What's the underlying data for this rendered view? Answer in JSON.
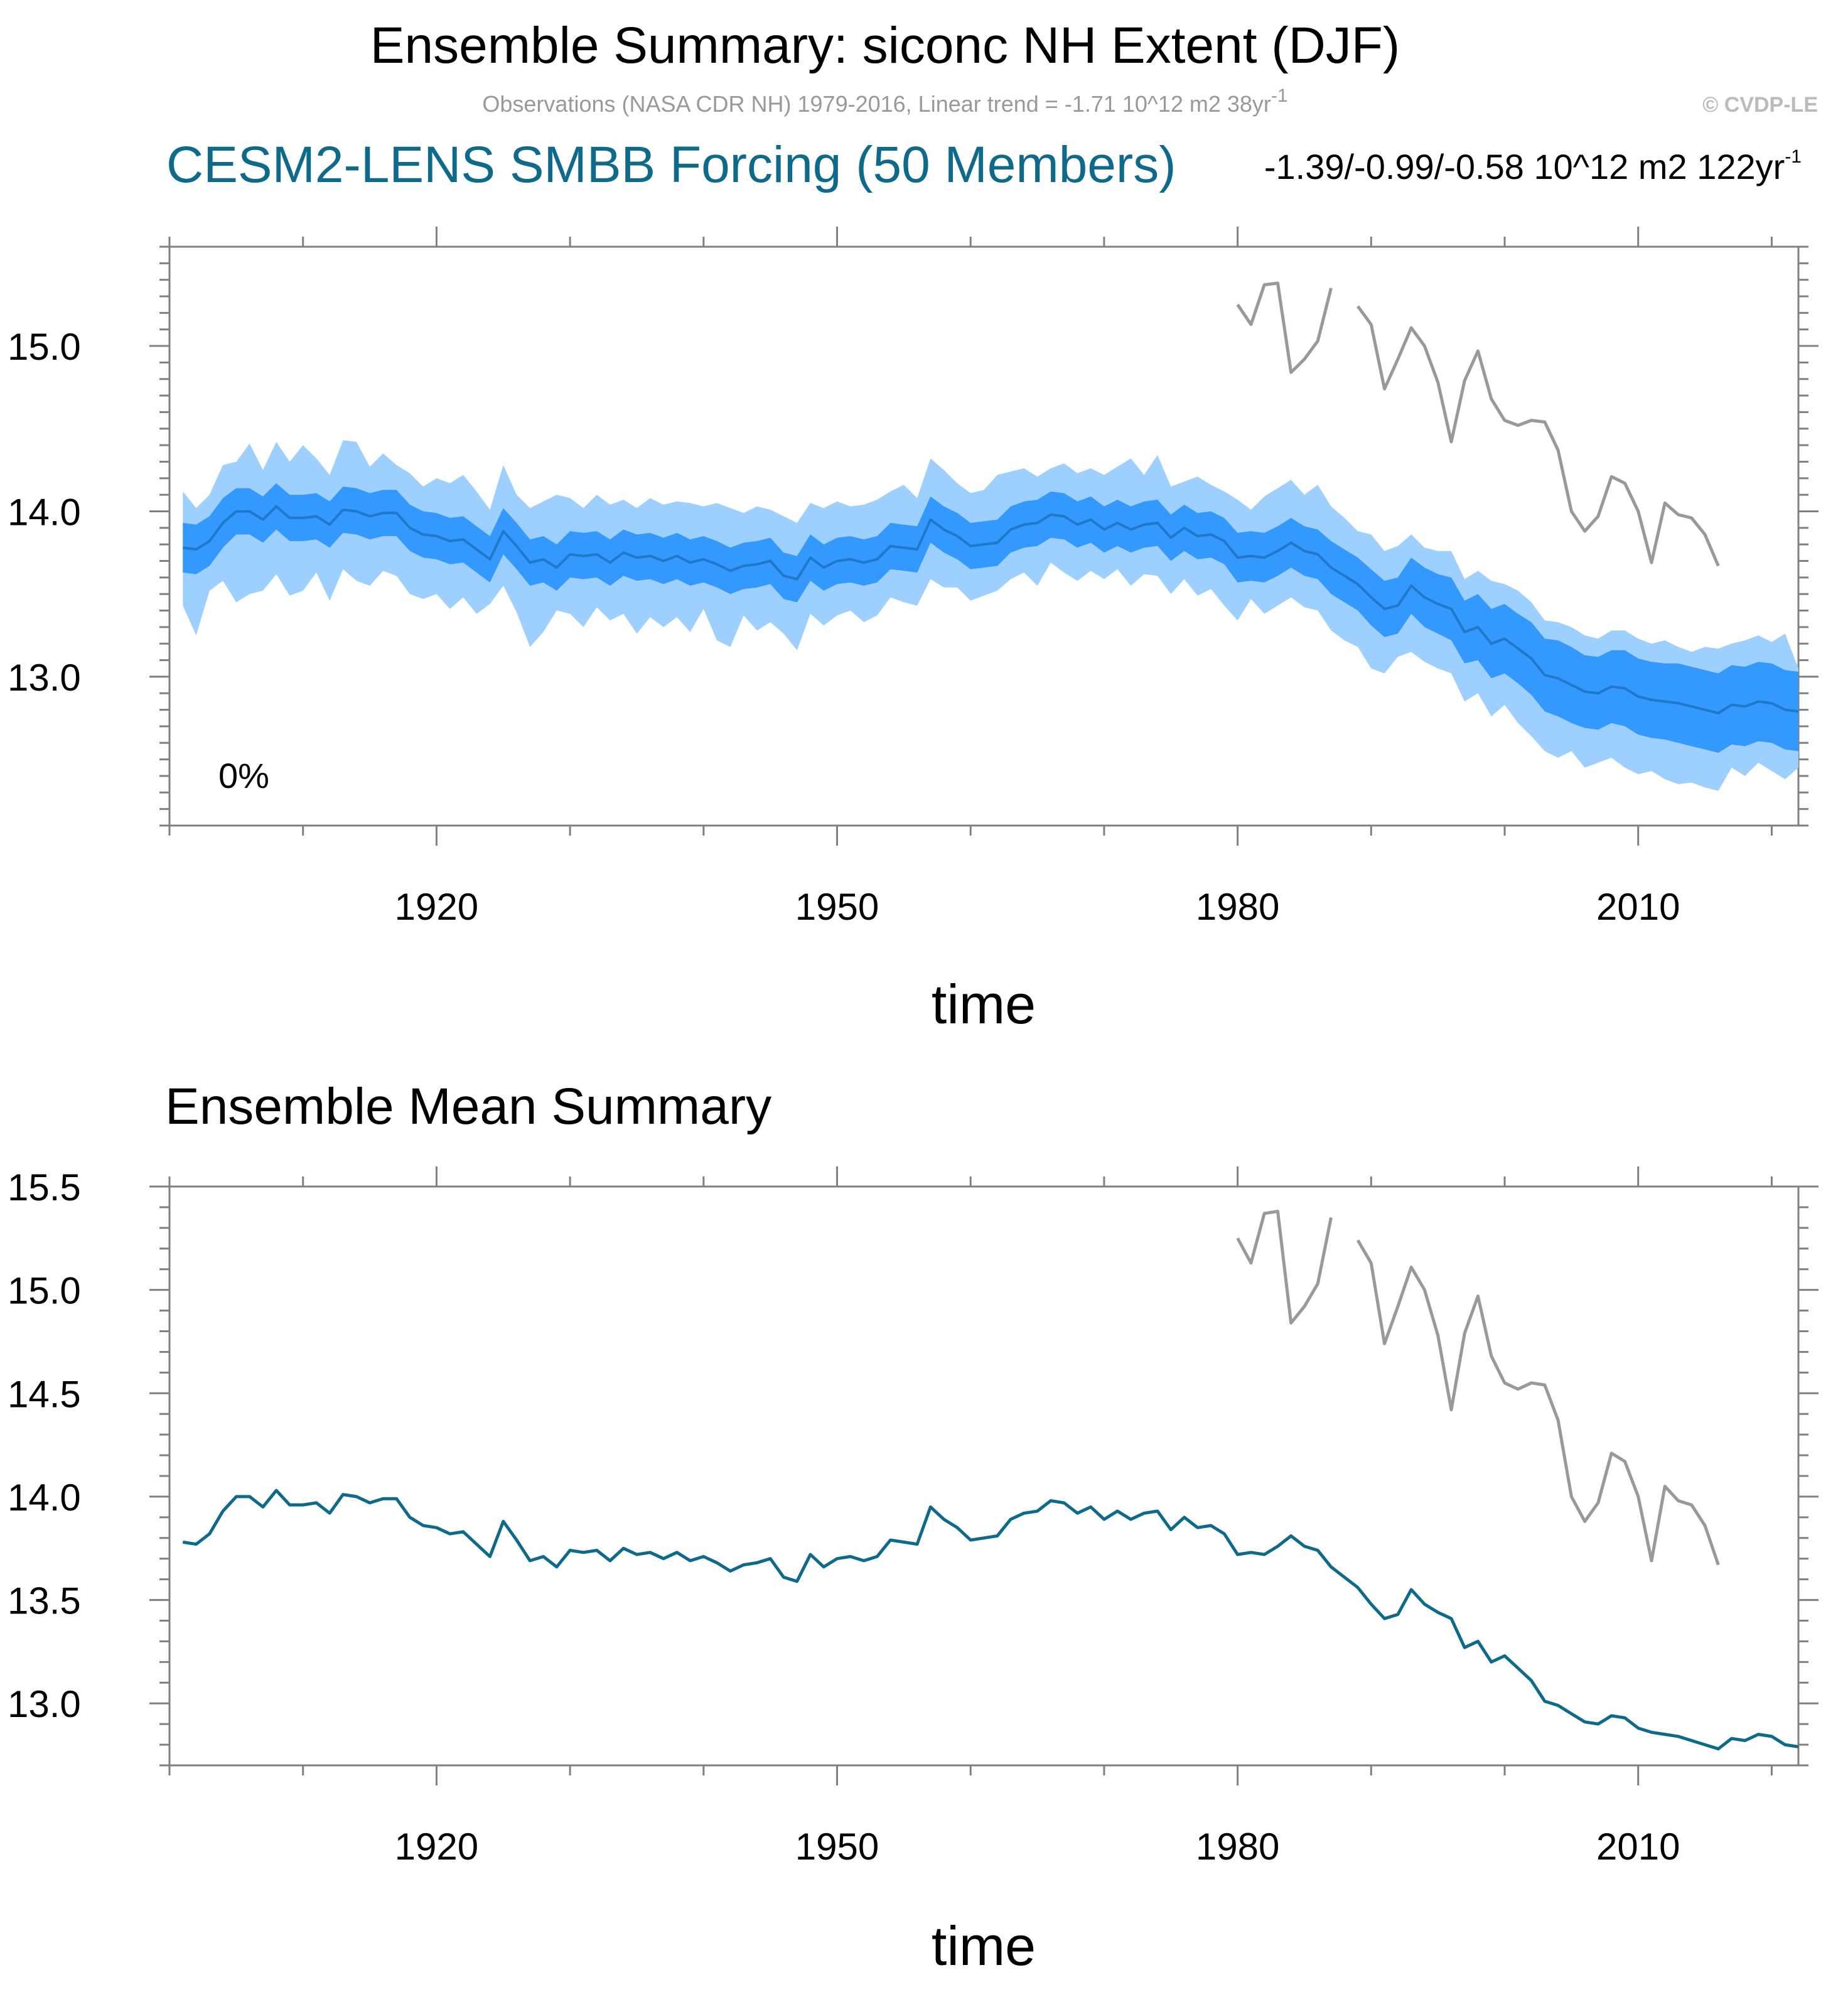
{
  "title": "Ensemble Summary: siconc NH Extent (DJF)",
  "subtitle": "Observations (NASA CDR NH) 1979-2016, Linear trend = -1.71 10^12 m2 38yr",
  "subtitle_sup": "-1",
  "credit": "© CVDP-LE",
  "model_title": "CESM2-LENS SMBB Forcing (50 Members)",
  "trend_text": "-1.39/-0.99/-0.58 10^12 m2 122yr",
  "trend_sup": "-1",
  "percent_label": "0%",
  "panel2_title": "Ensemble Mean Summary",
  "colors": {
    "model": "#0e6a8a",
    "spread_outer": "#9dcfff",
    "spread_inner": "#3399ff",
    "mean_top": "#1f78c8",
    "obs": "#999999",
    "credit": "#bbbbbb",
    "subtitle": "#999999"
  },
  "chart_data": [
    {
      "type": "area",
      "title": "CESM2-LENS SMBB Forcing (50 Members)",
      "xlabel": "time",
      "ylabel": "",
      "xlim": [
        1900,
        2022
      ],
      "ylim": [
        12.1,
        15.6
      ],
      "xticks": [
        1920,
        1950,
        1980,
        2010
      ],
      "xtick_labels": [
        "1920",
        "1950",
        "1980",
        "2010"
      ],
      "yticks": [
        13.0,
        14.0,
        15.0
      ],
      "ytick_labels": [
        "13.0",
        "14.0",
        "15.0"
      ],
      "x_start": 1901,
      "mean": [
        13.78,
        13.77,
        13.82,
        13.93,
        14.0,
        14.0,
        13.95,
        14.03,
        13.96,
        13.96,
        13.97,
        13.92,
        14.01,
        14.0,
        13.97,
        13.99,
        13.99,
        13.9,
        13.86,
        13.85,
        13.82,
        13.83,
        13.77,
        13.71,
        13.88,
        13.79,
        13.69,
        13.71,
        13.66,
        13.74,
        13.73,
        13.74,
        13.69,
        13.75,
        13.72,
        13.73,
        13.7,
        13.73,
        13.69,
        13.71,
        13.68,
        13.64,
        13.67,
        13.68,
        13.7,
        13.61,
        13.59,
        13.72,
        13.66,
        13.7,
        13.71,
        13.69,
        13.71,
        13.79,
        13.78,
        13.77,
        13.95,
        13.89,
        13.85,
        13.79,
        13.8,
        13.81,
        13.89,
        13.92,
        13.93,
        13.98,
        13.97,
        13.92,
        13.95,
        13.89,
        13.93,
        13.89,
        13.92,
        13.93,
        13.84,
        13.9,
        13.85,
        13.86,
        13.82,
        13.72,
        13.73,
        13.72,
        13.76,
        13.81,
        13.76,
        13.74,
        13.66,
        13.61,
        13.56,
        13.48,
        13.41,
        13.43,
        13.55,
        13.48,
        13.44,
        13.41,
        13.27,
        13.3,
        13.2,
        13.23,
        13.17,
        13.11,
        13.01,
        12.99,
        12.95,
        12.91,
        12.9,
        12.94,
        12.93,
        12.88,
        12.86,
        12.85,
        12.84,
        12.82,
        12.8,
        12.78,
        12.83,
        12.82,
        12.85,
        12.84,
        12.8,
        12.79
      ],
      "inner_low": [
        13.63,
        13.62,
        13.67,
        13.78,
        13.86,
        13.86,
        13.81,
        13.89,
        13.82,
        13.82,
        13.83,
        13.78,
        13.87,
        13.86,
        13.83,
        13.85,
        13.85,
        13.76,
        13.72,
        13.71,
        13.68,
        13.69,
        13.63,
        13.57,
        13.74,
        13.65,
        13.55,
        13.57,
        13.52,
        13.6,
        13.59,
        13.6,
        13.55,
        13.61,
        13.58,
        13.59,
        13.56,
        13.59,
        13.55,
        13.57,
        13.54,
        13.5,
        13.53,
        13.54,
        13.56,
        13.47,
        13.45,
        13.58,
        13.52,
        13.56,
        13.57,
        13.55,
        13.57,
        13.65,
        13.64,
        13.63,
        13.81,
        13.75,
        13.71,
        13.65,
        13.66,
        13.67,
        13.75,
        13.78,
        13.79,
        13.84,
        13.83,
        13.78,
        13.81,
        13.75,
        13.79,
        13.75,
        13.78,
        13.79,
        13.7,
        13.76,
        13.71,
        13.72,
        13.68,
        13.57,
        13.58,
        13.57,
        13.61,
        13.66,
        13.61,
        13.59,
        13.5,
        13.45,
        13.4,
        13.31,
        13.24,
        13.26,
        13.38,
        13.3,
        13.26,
        13.22,
        13.08,
        13.1,
        12.99,
        13.02,
        12.96,
        12.89,
        12.79,
        12.76,
        12.72,
        12.69,
        12.68,
        12.72,
        12.7,
        12.65,
        12.63,
        12.62,
        12.6,
        12.58,
        12.56,
        12.54,
        12.59,
        12.58,
        12.61,
        12.6,
        12.56,
        12.55
      ],
      "inner_high": [
        13.93,
        13.92,
        13.97,
        14.08,
        14.14,
        14.14,
        14.09,
        14.17,
        14.1,
        14.1,
        14.11,
        14.06,
        14.15,
        14.14,
        14.11,
        14.13,
        14.13,
        14.04,
        14.0,
        13.99,
        13.96,
        13.97,
        13.91,
        13.85,
        14.02,
        13.93,
        13.83,
        13.85,
        13.8,
        13.88,
        13.87,
        13.88,
        13.83,
        13.89,
        13.86,
        13.87,
        13.84,
        13.87,
        13.83,
        13.85,
        13.82,
        13.78,
        13.81,
        13.82,
        13.84,
        13.75,
        13.73,
        13.86,
        13.8,
        13.84,
        13.85,
        13.83,
        13.85,
        13.93,
        13.92,
        13.91,
        14.09,
        14.03,
        13.99,
        13.93,
        13.94,
        13.95,
        14.03,
        14.06,
        14.07,
        14.12,
        14.11,
        14.06,
        14.09,
        14.03,
        14.07,
        14.03,
        14.06,
        14.07,
        13.98,
        14.04,
        13.99,
        14.0,
        13.96,
        13.87,
        13.88,
        13.87,
        13.91,
        13.96,
        13.91,
        13.89,
        13.82,
        13.77,
        13.72,
        13.65,
        13.58,
        13.6,
        13.72,
        13.66,
        13.62,
        13.6,
        13.46,
        13.5,
        13.41,
        13.44,
        13.38,
        13.33,
        13.23,
        13.22,
        13.18,
        13.13,
        13.12,
        13.16,
        13.16,
        13.11,
        13.09,
        13.08,
        13.08,
        13.06,
        13.04,
        13.02,
        13.07,
        13.06,
        13.09,
        13.08,
        13.04,
        13.03
      ],
      "outer_low": [
        13.43,
        13.25,
        13.52,
        13.58,
        13.45,
        13.5,
        13.52,
        13.62,
        13.49,
        13.52,
        13.63,
        13.46,
        13.65,
        13.58,
        13.55,
        13.64,
        13.61,
        13.5,
        13.47,
        13.5,
        13.41,
        13.48,
        13.38,
        13.44,
        13.55,
        13.39,
        13.18,
        13.27,
        13.4,
        13.38,
        13.3,
        13.42,
        13.34,
        13.38,
        13.26,
        13.36,
        13.3,
        13.36,
        13.27,
        13.41,
        13.22,
        13.18,
        13.37,
        13.28,
        13.33,
        13.26,
        13.16,
        13.38,
        13.31,
        13.37,
        13.4,
        13.33,
        13.37,
        13.48,
        13.45,
        13.43,
        13.59,
        13.54,
        13.54,
        13.46,
        13.49,
        13.52,
        13.59,
        13.63,
        13.55,
        13.69,
        13.63,
        13.58,
        13.64,
        13.59,
        13.65,
        13.55,
        13.62,
        13.61,
        13.5,
        13.59,
        13.49,
        13.53,
        13.43,
        13.34,
        13.47,
        13.38,
        13.43,
        13.48,
        13.42,
        13.4,
        13.28,
        13.22,
        13.18,
        13.05,
        13.02,
        13.12,
        13.15,
        13.09,
        13.05,
        13.02,
        12.85,
        12.9,
        12.76,
        12.83,
        12.72,
        12.64,
        12.55,
        12.51,
        12.55,
        12.45,
        12.48,
        12.51,
        12.45,
        12.41,
        12.43,
        12.38,
        12.35,
        12.36,
        12.33,
        12.31,
        12.45,
        12.4,
        12.48,
        12.43,
        12.38,
        12.45
      ],
      "outer_high": [
        14.12,
        14.02,
        14.1,
        14.28,
        14.3,
        14.41,
        14.25,
        14.42,
        14.3,
        14.4,
        14.32,
        14.22,
        14.43,
        14.42,
        14.27,
        14.35,
        14.28,
        14.23,
        14.15,
        14.2,
        14.17,
        14.22,
        14.12,
        14.01,
        14.28,
        14.1,
        14.02,
        14.06,
        14.1,
        14.08,
        14.02,
        14.1,
        14.04,
        14.07,
        14.02,
        14.08,
        14.04,
        14.06,
        14.05,
        14.03,
        14.05,
        14.02,
        13.99,
        14.03,
        14.01,
        13.97,
        13.93,
        14.05,
        14.02,
        14.06,
        14.03,
        14.04,
        14.07,
        14.12,
        14.16,
        14.08,
        14.32,
        14.25,
        14.17,
        14.11,
        14.13,
        14.22,
        14.24,
        14.26,
        14.21,
        14.26,
        14.29,
        14.23,
        14.26,
        14.22,
        14.27,
        14.32,
        14.22,
        14.34,
        14.15,
        14.18,
        14.21,
        14.16,
        14.12,
        14.07,
        14.01,
        14.09,
        14.14,
        14.19,
        14.1,
        14.16,
        14.03,
        13.96,
        13.88,
        13.86,
        13.76,
        13.79,
        13.86,
        13.78,
        13.76,
        13.76,
        13.59,
        13.64,
        13.58,
        13.56,
        13.52,
        13.45,
        13.34,
        13.33,
        13.3,
        13.25,
        13.23,
        13.28,
        13.28,
        13.23,
        13.2,
        13.22,
        13.18,
        13.15,
        13.18,
        13.17,
        13.2,
        13.22,
        13.25,
        13.21,
        13.26,
        13.05
      ]
    },
    {
      "type": "line",
      "title": "Ensemble Mean Summary",
      "xlabel": "time",
      "ylabel": "",
      "xlim": [
        1900,
        2022
      ],
      "ylim": [
        12.7,
        15.5
      ],
      "xticks": [
        1920,
        1950,
        1980,
        2010
      ],
      "xtick_labels": [
        "1920",
        "1950",
        "1980",
        "2010"
      ],
      "yticks": [
        13.0,
        13.5,
        14.0,
        14.5,
        15.0,
        15.5
      ],
      "ytick_labels": [
        "13.0",
        "13.5",
        "14.0",
        "14.5",
        "15.0",
        "15.5"
      ],
      "series": [
        {
          "name": "Ensemble mean",
          "x_start": 1901,
          "ref": "chart_data.0.mean"
        }
      ]
    }
  ],
  "observations": {
    "name": "Observations (NASA CDR NH)",
    "x_start": 1980,
    "values": [
      15.25,
      15.13,
      15.37,
      15.38,
      14.84,
      14.92,
      15.03,
      15.35,
      null,
      15.24,
      15.13,
      14.74,
      14.92,
      15.11,
      15.0,
      14.78,
      14.42,
      14.79,
      14.97,
      14.68,
      14.55,
      14.52,
      14.55,
      14.54,
      14.37,
      14.0,
      13.88,
      13.97,
      14.21,
      14.17,
      14.0,
      13.69,
      14.05,
      13.98,
      13.96,
      13.86,
      13.67
    ]
  }
}
